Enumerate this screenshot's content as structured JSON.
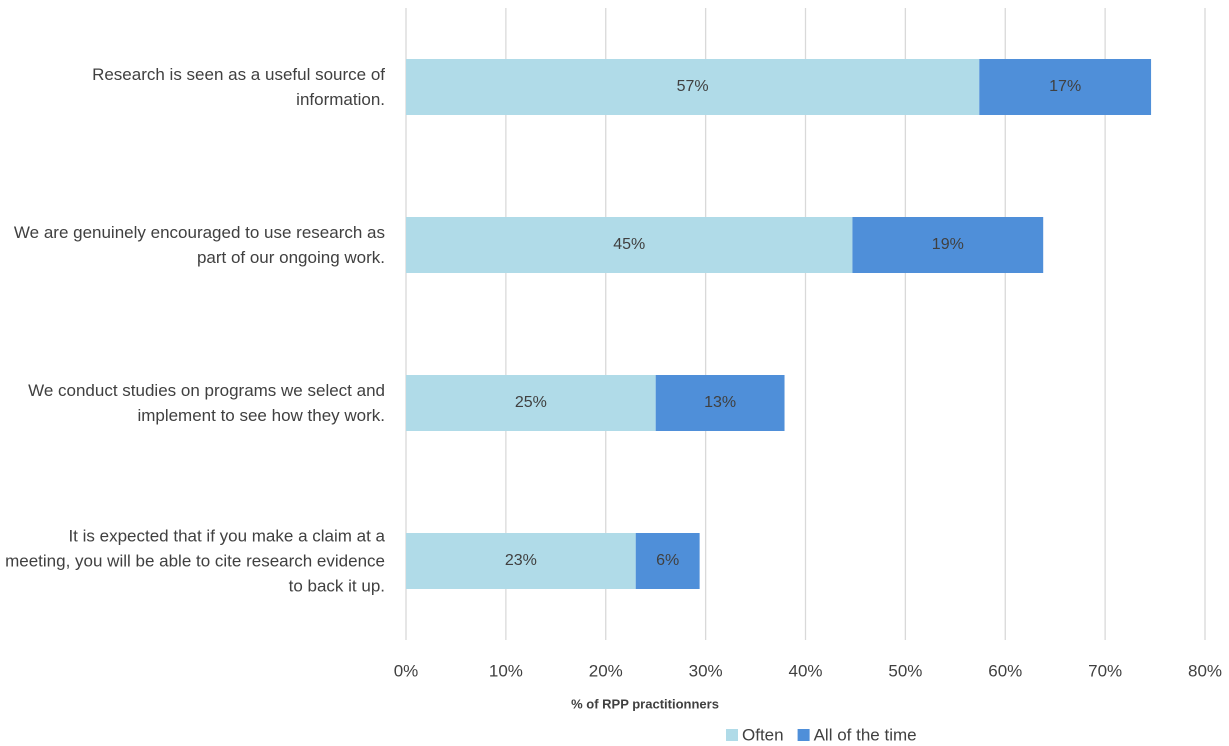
{
  "chart_data": {
    "type": "stacked-barh",
    "categories": [
      "Research is seen as a useful source of information.",
      "We are genuinely encouraged to use research as part of our ongoing work.",
      "We conduct studies on programs we select and implement to see how they work.",
      "It is expected that if you make a claim at a meeting, you will be able to cite research evidence to back it up."
    ],
    "series": [
      {
        "name": "Often",
        "color": "#b0dbe8",
        "values": [
          57.4,
          44.7,
          25,
          23
        ],
        "value_labels": [
          "57%",
          "45%",
          "25%",
          "23%"
        ]
      },
      {
        "name": "All of the time",
        "color": "#4f8fd9",
        "values": [
          17.2,
          19.1,
          12.9,
          6.4
        ],
        "value_labels": [
          "17%",
          "19%",
          "13%",
          "6%"
        ]
      }
    ],
    "x_label": "% of RPP practitionners",
    "xlim": [
      0,
      80
    ],
    "xticks": [
      {
        "value": 0,
        "label": "0%"
      },
      {
        "value": 10,
        "label": "10%"
      },
      {
        "value": 20,
        "label": "20%"
      },
      {
        "value": 30,
        "label": "30%"
      },
      {
        "value": 40,
        "label": "40%"
      },
      {
        "value": 50,
        "label": "50%"
      },
      {
        "value": 60,
        "label": "60%"
      },
      {
        "value": 70,
        "label": "70%"
      },
      {
        "value": 80,
        "label": "80%"
      }
    ],
    "grid": true,
    "legend": "bottom"
  }
}
